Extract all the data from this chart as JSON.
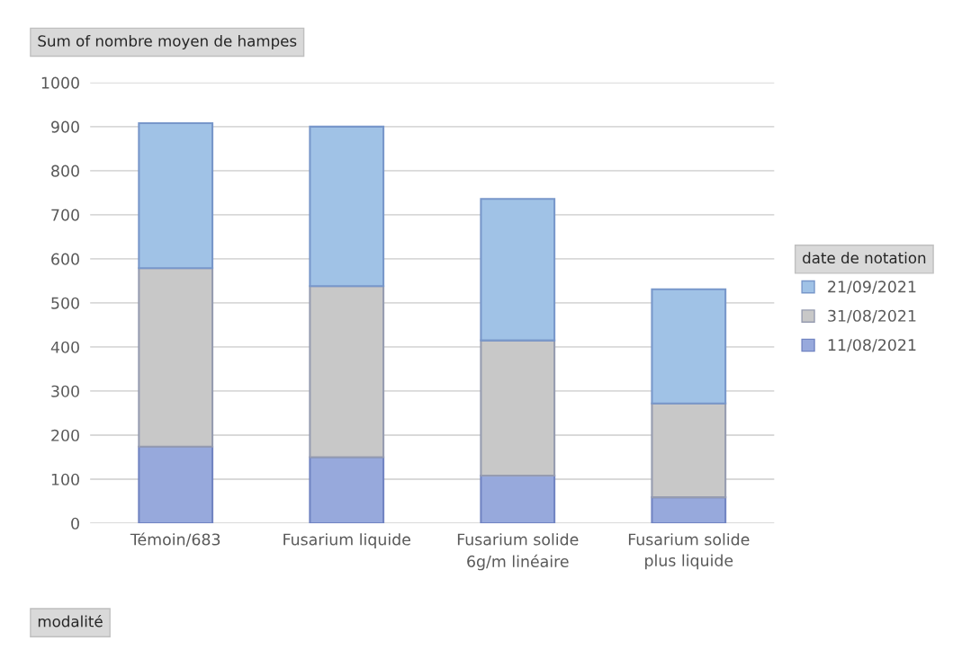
{
  "chart_data": {
    "type": "bar",
    "stacked": true,
    "title": "Sum of nombre moyen de hampes",
    "xlabel": "modalité",
    "legend_title": "date de notation",
    "categories": [
      "Témoin/683",
      "Fusarium liquide",
      "Fusarium solide\n6g/m linéaire",
      "Fusarium solide\nplus liquide"
    ],
    "series": [
      {
        "name": "11/08/2021",
        "color": "#97a9dc",
        "values": [
          174,
          150,
          108,
          59
        ]
      },
      {
        "name": "31/08/2021",
        "color": "#c8c8c8",
        "values": [
          405,
          388,
          307,
          213
        ]
      },
      {
        "name": "21/09/2021",
        "color": "#a0c2e6",
        "values": [
          329,
          362,
          321,
          259
        ]
      }
    ],
    "ylim": [
      0,
      1000
    ],
    "yticks": [
      0,
      100,
      200,
      300,
      400,
      500,
      600,
      700,
      800,
      900,
      1000
    ],
    "grid": "y",
    "legend": "right"
  }
}
